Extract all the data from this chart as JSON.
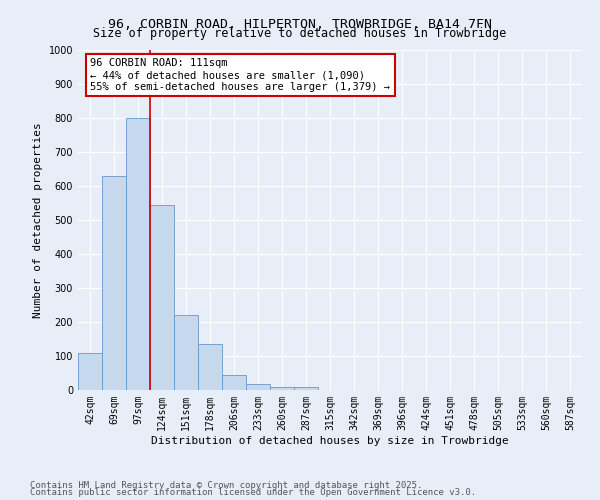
{
  "title": "96, CORBIN ROAD, HILPERTON, TROWBRIDGE, BA14 7FN",
  "subtitle": "Size of property relative to detached houses in Trowbridge",
  "xlabel": "Distribution of detached houses by size in Trowbridge",
  "ylabel": "Number of detached properties",
  "categories": [
    "42sqm",
    "69sqm",
    "97sqm",
    "124sqm",
    "151sqm",
    "178sqm",
    "206sqm",
    "233sqm",
    "260sqm",
    "287sqm",
    "315sqm",
    "342sqm",
    "369sqm",
    "396sqm",
    "424sqm",
    "451sqm",
    "478sqm",
    "505sqm",
    "533sqm",
    "560sqm",
    "587sqm"
  ],
  "values": [
    110,
    630,
    800,
    545,
    220,
    135,
    43,
    17,
    9,
    10,
    0,
    0,
    0,
    0,
    0,
    0,
    0,
    0,
    0,
    0,
    0
  ],
  "bar_color": "#c5d8ee",
  "bar_edge_color": "#6699cc",
  "vline_x": 2.5,
  "vline_color": "#cc0000",
  "annotation_text": "96 CORBIN ROAD: 111sqm\n← 44% of detached houses are smaller (1,090)\n55% of semi-detached houses are larger (1,379) →",
  "annotation_box_color": "#ffffff",
  "annotation_box_edge": "#cc0000",
  "footnote1": "Contains HM Land Registry data © Crown copyright and database right 2025.",
  "footnote2": "Contains public sector information licensed under the Open Government Licence v3.0.",
  "ylim": [
    0,
    1000
  ],
  "yticks": [
    0,
    100,
    200,
    300,
    400,
    500,
    600,
    700,
    800,
    900,
    1000
  ],
  "bg_color": "#e8eef8",
  "grid_color": "#ffffff",
  "title_fontsize": 9.5,
  "subtitle_fontsize": 8.5,
  "axis_label_fontsize": 8,
  "tick_fontsize": 7,
  "annot_fontsize": 7.5,
  "footnote_fontsize": 6.5
}
